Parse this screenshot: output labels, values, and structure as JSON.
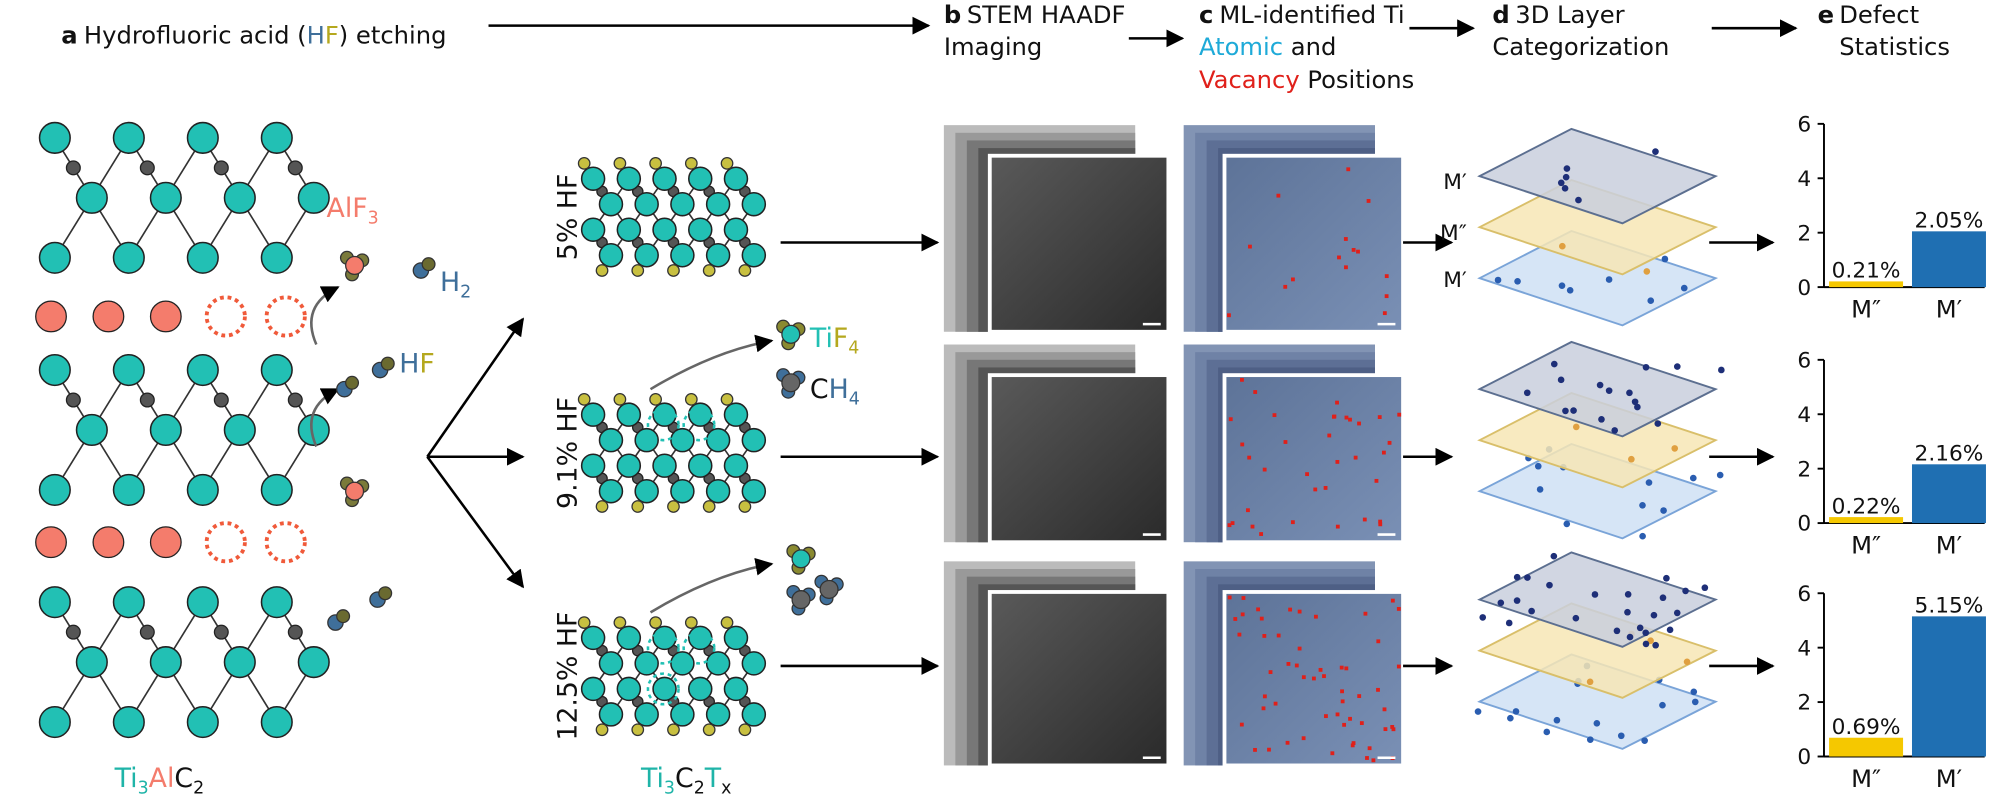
{
  "panel_a": {
    "letter": "a",
    "title": [
      "Hydrofluoric acid (",
      "H",
      "F",
      ") etching"
    ],
    "alf3": [
      "AlF",
      "3"
    ],
    "h2": [
      "H",
      "2"
    ],
    "hf": [
      "H",
      "F"
    ],
    "formula": [
      "Ti",
      "3",
      "Al",
      "C",
      "2"
    ]
  },
  "panel_a2": {
    "concentrations": [
      "5% HF",
      "9.1% HF",
      "12.5% HF"
    ],
    "tif4": [
      "Ti",
      "F",
      "4"
    ],
    "ch4": [
      "C",
      "H",
      "4"
    ],
    "formula": [
      "Ti",
      "3",
      "C",
      "2",
      "T",
      "x"
    ]
  },
  "panel_b": {
    "letter": "b",
    "title": [
      "STEM HAADF",
      "Imaging"
    ]
  },
  "panel_c": {
    "letter": "c",
    "title": [
      "ML-identified Ti",
      "Atomic",
      " and",
      "Vacancy",
      " Positions"
    ]
  },
  "panel_d": {
    "letter": "d",
    "title": [
      "3D Layer",
      "Categorization"
    ],
    "layer_labels": [
      "M′",
      "M″",
      "M′"
    ]
  },
  "panel_e": {
    "letter": "e",
    "title": [
      "Defect",
      "Statistics"
    ]
  },
  "chart_data": [
    {
      "type": "bar",
      "categories": [
        "M″",
        "M′"
      ],
      "values": [
        0.21,
        2.05
      ],
      "value_labels": [
        "0.21%",
        "2.05%"
      ],
      "colors": [
        "#f5c800",
        "#1f6fb2"
      ],
      "label_colors": [
        "#b8900a",
        "#1f6fb2"
      ],
      "ylim": [
        0,
        6
      ],
      "yticks": [
        0,
        2,
        4,
        6
      ]
    },
    {
      "type": "bar",
      "categories": [
        "M″",
        "M′"
      ],
      "values": [
        0.22,
        2.16
      ],
      "value_labels": [
        "0.22%",
        "2.16%"
      ],
      "colors": [
        "#f5c800",
        "#1f6fb2"
      ],
      "label_colors": [
        "#b8900a",
        "#1f6fb2"
      ],
      "ylim": [
        0,
        6
      ],
      "yticks": [
        0,
        2,
        4,
        6
      ]
    },
    {
      "type": "bar",
      "categories": [
        "M″",
        "M′"
      ],
      "values": [
        0.69,
        5.15
      ],
      "value_labels": [
        "0.69%",
        "5.15%"
      ],
      "colors": [
        "#f5c800",
        "#1f6fb2"
      ],
      "label_colors": [
        "#b8900a",
        "#1f6fb2"
      ],
      "ylim": [
        0,
        6
      ],
      "yticks": [
        0,
        2,
        4,
        6
      ]
    }
  ]
}
